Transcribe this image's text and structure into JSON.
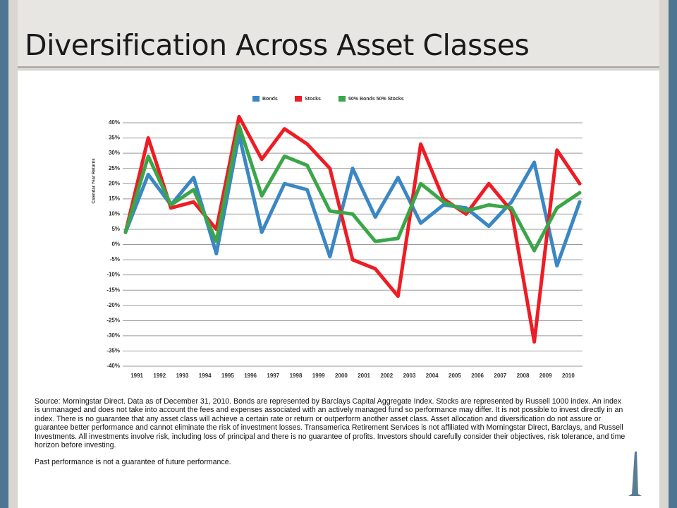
{
  "header": {
    "title": "Diversification Across Asset Classes"
  },
  "chart_data": {
    "type": "line",
    "y_label": "Calendar Year Returns",
    "categories": [
      null,
      "1991",
      "1992",
      "1993",
      "1994",
      "1995",
      "1996",
      "1997",
      "1998",
      "1999",
      "2000",
      "2001",
      "2002",
      "2003",
      "2004",
      "2005",
      "2006",
      "2007",
      "2008",
      "2009",
      "2010"
    ],
    "series": [
      {
        "name": "Bonds",
        "color": "#3a87c4",
        "values": [
          4,
          23,
          13,
          22,
          -3,
          36,
          4,
          20,
          18,
          -4,
          25,
          9,
          22,
          7,
          13,
          12,
          6,
          14,
          27,
          -7,
          14
        ]
      },
      {
        "name": "Stocks",
        "color": "#ee1c24",
        "values": [
          4,
          35,
          12,
          14,
          5,
          42,
          28,
          38,
          33,
          25,
          -5,
          -8,
          -17,
          33,
          15,
          10,
          20,
          11,
          -32,
          31,
          20
        ]
      },
      {
        "name": "50% Bonds 50% Stocks",
        "color": "#3aa648",
        "values": [
          4,
          29,
          13,
          18,
          1,
          39,
          16,
          29,
          26,
          11,
          10,
          1,
          2,
          20,
          14,
          11,
          13,
          12,
          -2,
          12,
          17
        ]
      }
    ],
    "ylim": [
      -40,
      40
    ],
    "yticks": [
      {
        "value": 40,
        "label": "40%"
      },
      {
        "value": 35,
        "label": "35%"
      },
      {
        "value": 30,
        "label": "30%"
      },
      {
        "value": 25,
        "label": "25%"
      },
      {
        "value": 20,
        "label": "20%"
      },
      {
        "value": 15,
        "label": "15%"
      },
      {
        "value": 10,
        "label": "10%"
      },
      {
        "value": 5,
        "label": "5%"
      },
      {
        "value": 0,
        "label": "0%"
      },
      {
        "value": -5,
        "label": "-5%"
      },
      {
        "value": -10,
        "label": "-10%"
      },
      {
        "value": -15,
        "label": "-15%"
      },
      {
        "value": -20,
        "label": "-20%"
      },
      {
        "value": -25,
        "label": "-25%"
      },
      {
        "value": -30,
        "label": "-30%"
      },
      {
        "value": -35,
        "label": "-35%"
      },
      {
        "value": -40,
        "label": "-40%"
      }
    ],
    "grid": true,
    "legend": "top"
  },
  "footnote": {
    "source": "Source: Morningstar Direct. Data as of December 31, 2010. Bonds are represented by Barclays Capital Aggregate Index. Stocks are represented by Russell 1000 index. An index is unmanaged and does not take into account the fees and expenses associated with an actively managed fund so performance may differ. It is not possible to invest directly in an index. There is no guarantee that any asset class will achieve a certain rate or return or outperform another asset class. Asset allocation and diversification do not assure or guarantee better performance and cannot eliminate the risk of investment losses. Transamerica Retirement Services is not affiliated with Morningstar Direct, Barclays, and Russell Investments. All investments involve risk, including loss of principal and there is no guarantee of profits. Investors should carefully consider their objectives, risk tolerance, and time horizon before investing.",
    "disclaimer": "Past performance is not a guarantee of future performance."
  }
}
